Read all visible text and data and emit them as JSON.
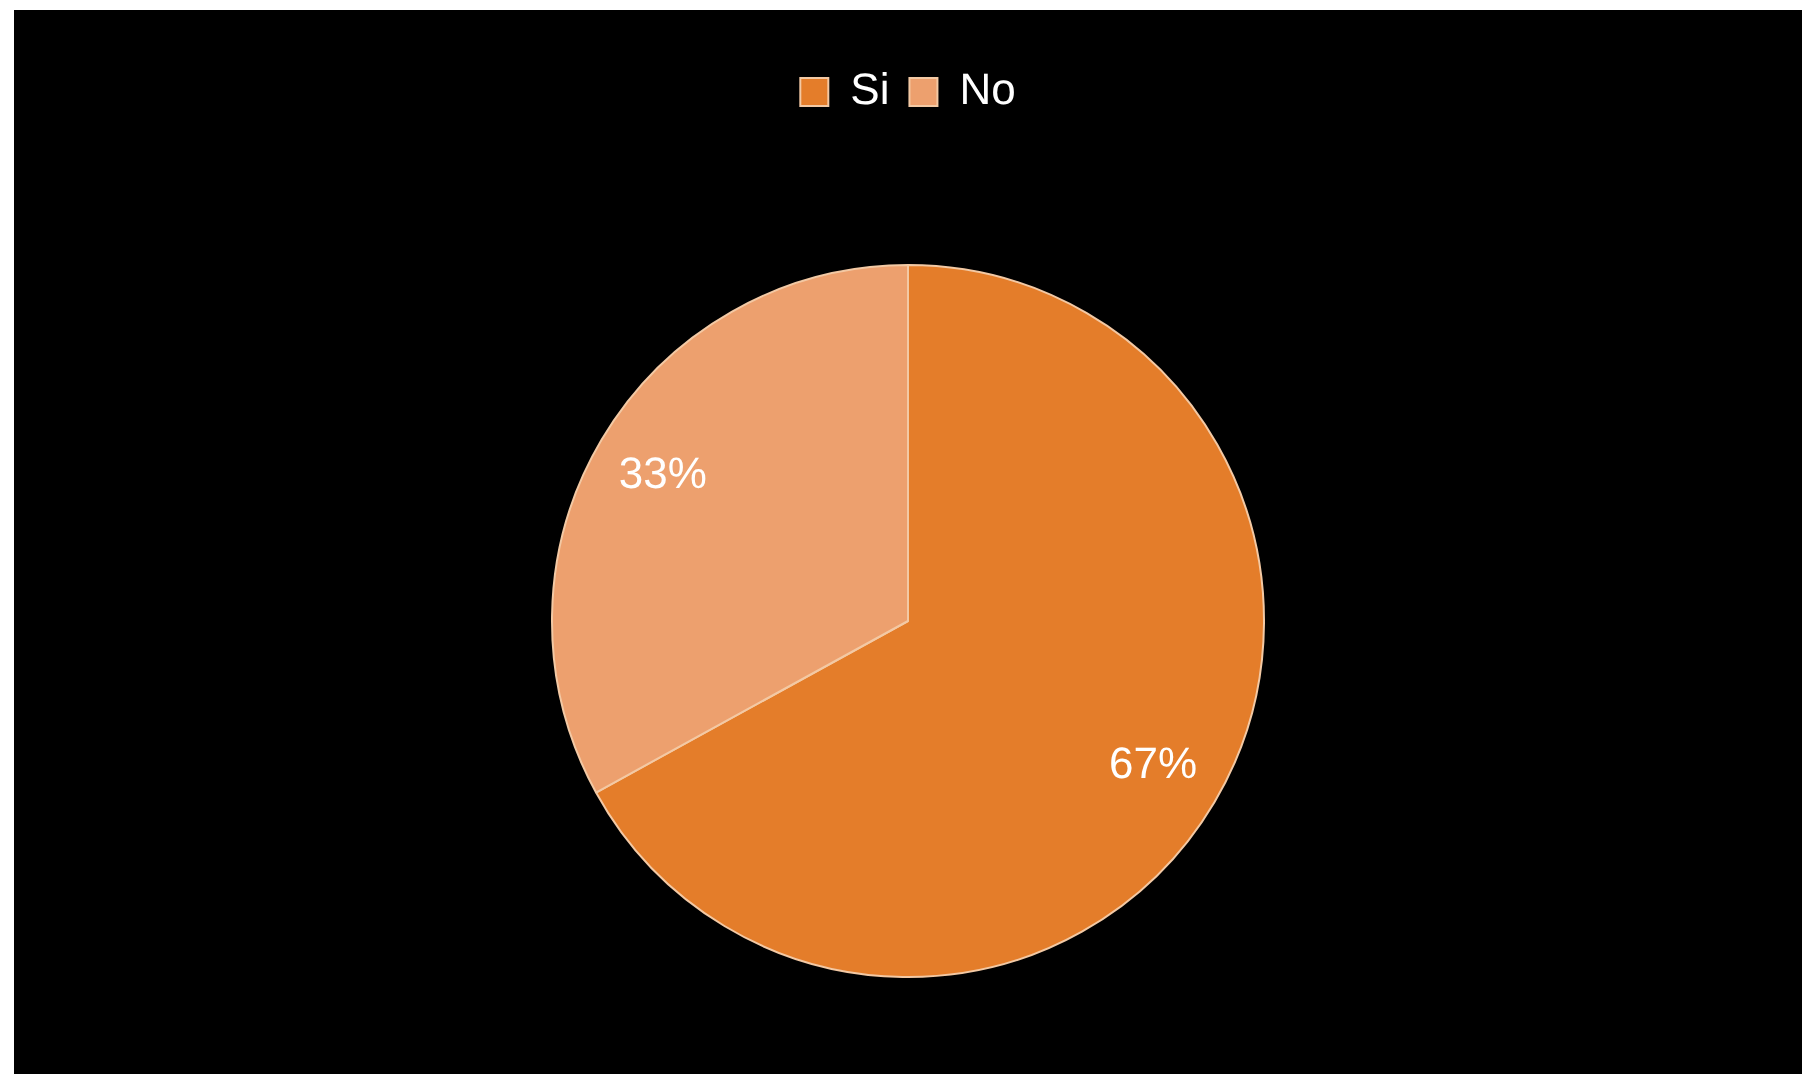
{
  "chart_data": {
    "type": "pie",
    "categories": [
      "Si",
      "No"
    ],
    "values": [
      67,
      33
    ],
    "colors": [
      "#e47d2a",
      "#eda06e"
    ],
    "value_labels": [
      "67%",
      "33%"
    ],
    "legend": "top"
  }
}
